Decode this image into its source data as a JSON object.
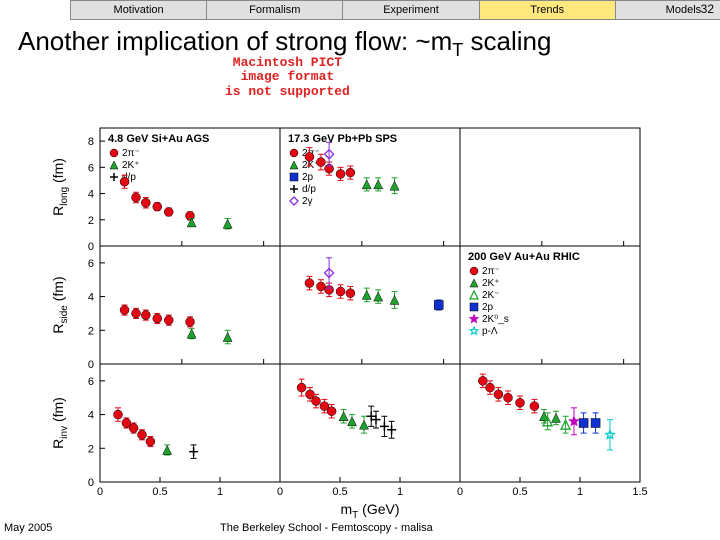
{
  "tabs": [
    "Motivation",
    "Formalism",
    "Experiment",
    "Trends",
    "Models"
  ],
  "active_tab": 3,
  "page_number": "32",
  "title_plain": "Another implication of strong flow: ~m",
  "title_sub": "T",
  "title_tail": " scaling",
  "pict_warning": "Macintosh PICT\nimage format\nis not supported",
  "footer_date": "May 2005",
  "footer_credit": "The Berkeley School - Femtoscopy - malisa",
  "chart": {
    "type": "scatter-grid",
    "background_color": "#ffffff",
    "axis_color": "#000000",
    "tick_fontsize": 11,
    "label_fontsize": 14,
    "panel_title_fontsize": 11,
    "legend_fontsize": 10,
    "marker_size": 4.5,
    "error_bar_width": 1,
    "rows": 3,
    "cols": 3,
    "row_labels": [
      "R_long (fm)",
      "R_side (fm)",
      "R_inv (fm)"
    ],
    "x_label": "m_T (GeV)",
    "panels": [
      {
        "r": 0,
        "c": 0,
        "title": "4.8 GeV Si+Au AGS",
        "xlim": [
          0,
          1.1
        ],
        "ylim": [
          0,
          9
        ],
        "yticks": [
          0,
          2,
          4,
          6,
          8
        ],
        "xticks": [
          0,
          0.5,
          1
        ],
        "legend": [
          {
            "label": "2π⁻",
            "color": "#e30613",
            "marker": "circle"
          },
          {
            "label": "2K⁺",
            "color": "#1fa22e",
            "marker": "triangle"
          },
          {
            "label": "d/p",
            "color": "#000000",
            "marker": "cross-open"
          }
        ],
        "series": [
          {
            "color": "#e30613",
            "marker": "circle",
            "points": [
              [
                0.15,
                4.9,
                0.5
              ],
              [
                0.22,
                3.7,
                0.4
              ],
              [
                0.28,
                3.3,
                0.4
              ],
              [
                0.35,
                3.0,
                0.3
              ],
              [
                0.42,
                2.6,
                0.3
              ],
              [
                0.55,
                2.3,
                0.3
              ]
            ]
          },
          {
            "color": "#1fa22e",
            "marker": "triangle",
            "points": [
              [
                0.56,
                1.8,
                0.3
              ],
              [
                0.78,
                1.7,
                0.4
              ]
            ]
          }
        ]
      },
      {
        "r": 0,
        "c": 1,
        "title": "17.3 GeV Pb+Pb SPS",
        "xlim": [
          0,
          1.1
        ],
        "ylim": [
          0,
          9
        ],
        "yticks": [],
        "xticks": [
          0,
          0.5,
          1
        ],
        "legend": [
          {
            "label": "2π⁻",
            "color": "#e30613",
            "marker": "circle"
          },
          {
            "label": "2K⁺",
            "color": "#1fa22e",
            "marker": "triangle"
          },
          {
            "label": "2p",
            "color": "#1030d0",
            "marker": "square"
          },
          {
            "label": "d/p",
            "color": "#000000",
            "marker": "cross-open"
          },
          {
            "label": "2γ",
            "color": "#8a2be2",
            "marker": "diamond-open"
          }
        ],
        "series": [
          {
            "color": "#e30613",
            "marker": "circle",
            "points": [
              [
                0.18,
                6.8,
                0.7
              ],
              [
                0.25,
                6.4,
                0.6
              ],
              [
                0.3,
                5.9,
                0.5
              ],
              [
                0.37,
                5.5,
                0.5
              ],
              [
                0.43,
                5.6,
                0.5
              ]
            ]
          },
          {
            "color": "#1fa22e",
            "marker": "triangle",
            "points": [
              [
                0.53,
                4.7,
                0.5
              ],
              [
                0.6,
                4.7,
                0.5
              ],
              [
                0.7,
                4.6,
                0.6
              ]
            ]
          },
          {
            "color": "#8a2be2",
            "marker": "diamond-open",
            "points": [
              [
                0.3,
                7.0,
                0.9
              ]
            ]
          }
        ]
      },
      {
        "r": 0,
        "c": 2,
        "title": "",
        "xlim": [
          0,
          1.1
        ],
        "ylim": [
          0,
          9
        ],
        "yticks": [],
        "xticks": [
          0,
          0.5,
          1
        ],
        "series": []
      },
      {
        "r": 1,
        "c": 0,
        "title": "",
        "xlim": [
          0,
          1.1
        ],
        "ylim": [
          0,
          7
        ],
        "yticks": [
          0,
          2,
          4,
          6
        ],
        "xticks": [
          0,
          0.5,
          1
        ],
        "series": [
          {
            "color": "#e30613",
            "marker": "circle",
            "points": [
              [
                0.15,
                3.2,
                0.3
              ],
              [
                0.22,
                3.0,
                0.3
              ],
              [
                0.28,
                2.9,
                0.3
              ],
              [
                0.35,
                2.7,
                0.3
              ],
              [
                0.42,
                2.6,
                0.3
              ],
              [
                0.55,
                2.5,
                0.3
              ]
            ]
          },
          {
            "color": "#1fa22e",
            "marker": "triangle",
            "points": [
              [
                0.56,
                1.8,
                0.3
              ],
              [
                0.78,
                1.6,
                0.4
              ]
            ]
          }
        ]
      },
      {
        "r": 1,
        "c": 1,
        "title": "",
        "xlim": [
          0,
          1.1
        ],
        "ylim": [
          0,
          7
        ],
        "yticks": [],
        "xticks": [
          0,
          0.5,
          1
        ],
        "series": [
          {
            "color": "#e30613",
            "marker": "circle",
            "points": [
              [
                0.18,
                4.8,
                0.4
              ],
              [
                0.25,
                4.6,
                0.4
              ],
              [
                0.3,
                4.4,
                0.4
              ],
              [
                0.37,
                4.3,
                0.4
              ],
              [
                0.43,
                4.2,
                0.4
              ]
            ]
          },
          {
            "color": "#1fa22e",
            "marker": "triangle",
            "points": [
              [
                0.53,
                4.1,
                0.4
              ],
              [
                0.6,
                4.0,
                0.4
              ],
              [
                0.7,
                3.8,
                0.5
              ]
            ]
          },
          {
            "color": "#1030d0",
            "marker": "square",
            "points": [
              [
                0.97,
                3.5,
                0.3
              ]
            ]
          },
          {
            "color": "#8a2be2",
            "marker": "diamond-open",
            "points": [
              [
                0.3,
                5.4,
                0.9
              ]
            ]
          }
        ]
      },
      {
        "r": 1,
        "c": 2,
        "title": "200 GeV Au+Au RHIC",
        "xlim": [
          0,
          1.1
        ],
        "ylim": [
          0,
          7
        ],
        "yticks": [],
        "xticks": [
          0,
          0.5,
          1
        ],
        "legend": [
          {
            "label": "2π⁻",
            "color": "#e30613",
            "marker": "circle"
          },
          {
            "label": "2K⁺",
            "color": "#1fa22e",
            "marker": "triangle"
          },
          {
            "label": "2K⁻",
            "color": "#1fa22e",
            "marker": "triangle-open"
          },
          {
            "label": "2p",
            "color": "#1030d0",
            "marker": "square"
          },
          {
            "label": "2K⁰_s",
            "color": "#c000c0",
            "marker": "star"
          },
          {
            "label": "p-Λ",
            "color": "#00c8c8",
            "marker": "star-open"
          }
        ],
        "series": []
      },
      {
        "r": 2,
        "c": 0,
        "title": "",
        "xlim": [
          0,
          1.5
        ],
        "ylim": [
          0,
          7
        ],
        "yticks": [
          0,
          2,
          4,
          6
        ],
        "xticks": [
          0,
          0.5,
          1
        ],
        "series": [
          {
            "color": "#e30613",
            "marker": "circle",
            "points": [
              [
                0.15,
                4.0,
                0.4
              ],
              [
                0.22,
                3.5,
                0.3
              ],
              [
                0.28,
                3.2,
                0.3
              ],
              [
                0.35,
                2.8,
                0.3
              ],
              [
                0.42,
                2.4,
                0.3
              ]
            ]
          },
          {
            "color": "#1fa22e",
            "marker": "triangle",
            "points": [
              [
                0.56,
                1.9,
                0.3
              ]
            ]
          },
          {
            "color": "#000000",
            "marker": "cross-open",
            "points": [
              [
                0.78,
                1.8,
                0.4
              ]
            ]
          }
        ]
      },
      {
        "r": 2,
        "c": 1,
        "title": "",
        "xlim": [
          0,
          1.5
        ],
        "ylim": [
          0,
          7
        ],
        "yticks": [],
        "xticks": [
          0,
          0.5,
          1
        ],
        "series": [
          {
            "color": "#e30613",
            "marker": "circle",
            "points": [
              [
                0.18,
                5.6,
                0.5
              ],
              [
                0.25,
                5.2,
                0.4
              ],
              [
                0.3,
                4.8,
                0.4
              ],
              [
                0.37,
                4.5,
                0.4
              ],
              [
                0.43,
                4.2,
                0.4
              ]
            ]
          },
          {
            "color": "#1fa22e",
            "marker": "triangle",
            "points": [
              [
                0.53,
                3.9,
                0.4
              ],
              [
                0.6,
                3.6,
                0.4
              ],
              [
                0.7,
                3.4,
                0.5
              ]
            ]
          },
          {
            "color": "#000000",
            "marker": "cross-open",
            "points": [
              [
                0.76,
                3.9,
                0.6
              ],
              [
                0.8,
                3.7,
                0.5
              ],
              [
                0.87,
                3.3,
                0.6
              ],
              [
                0.93,
                3.1,
                0.5
              ]
            ]
          }
        ]
      },
      {
        "r": 2,
        "c": 2,
        "title": "",
        "xlim": [
          0,
          1.5
        ],
        "ylim": [
          0,
          7
        ],
        "yticks": [],
        "xticks": [
          0,
          0.5,
          1,
          1.5
        ],
        "series": [
          {
            "color": "#e30613",
            "marker": "circle",
            "points": [
              [
                0.19,
                6.0,
                0.4
              ],
              [
                0.25,
                5.6,
                0.4
              ],
              [
                0.32,
                5.2,
                0.4
              ],
              [
                0.4,
                5.0,
                0.4
              ],
              [
                0.5,
                4.7,
                0.4
              ],
              [
                0.62,
                4.5,
                0.4
              ]
            ]
          },
          {
            "color": "#1fa22e",
            "marker": "triangle",
            "points": [
              [
                0.7,
                3.9,
                0.4
              ],
              [
                0.8,
                3.8,
                0.4
              ]
            ]
          },
          {
            "color": "#1fa22e",
            "marker": "triangle-open",
            "points": [
              [
                0.73,
                3.6,
                0.5
              ],
              [
                0.88,
                3.4,
                0.5
              ]
            ]
          },
          {
            "color": "#1030d0",
            "marker": "square",
            "points": [
              [
                1.03,
                3.5,
                0.6
              ],
              [
                1.13,
                3.5,
                0.6
              ]
            ]
          },
          {
            "color": "#c000c0",
            "marker": "star",
            "points": [
              [
                0.95,
                3.6,
                0.8
              ]
            ]
          },
          {
            "color": "#00c8c8",
            "marker": "star-open",
            "points": [
              [
                1.25,
                2.8,
                0.9
              ]
            ]
          }
        ]
      }
    ]
  }
}
